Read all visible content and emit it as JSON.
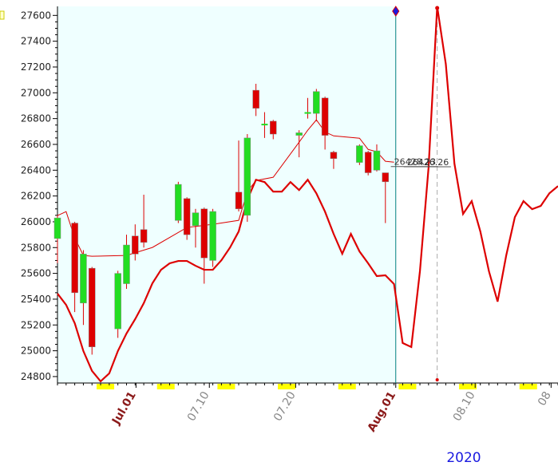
{
  "chart_data": {
    "type": "candlestick",
    "xlim": [
      0,
      58
    ],
    "ylim": [
      24750,
      27670
    ],
    "yticks": [
      24800,
      25000,
      25200,
      25400,
      25600,
      25800,
      26000,
      26200,
      26400,
      26600,
      26800,
      27000,
      27200,
      27400,
      27600
    ],
    "xticks": [
      {
        "value": 9.1,
        "label": "Jul.01",
        "color": "#8b1a1a"
      },
      {
        "value": 17.6,
        "label": "07.10",
        "color": "#888888"
      },
      {
        "value": 27.6,
        "label": "07.20",
        "color": "#888888"
      },
      {
        "value": 39.2,
        "label": "Aug.01",
        "color": "#8b1a1a"
      },
      {
        "value": 48.4,
        "label": "08.10",
        "color": "#888888"
      },
      {
        "value": 57.2,
        "label": "08",
        "color": "#888888"
      }
    ],
    "year_label": "2020",
    "up_color": "#22dd22",
    "down_color": "#dd0000",
    "candles": {
      "x": [
        0,
        2,
        3,
        4,
        7,
        8,
        9,
        10,
        14,
        15,
        16,
        17,
        18,
        21,
        22,
        23,
        24,
        25,
        28,
        29,
        30,
        31,
        32,
        35,
        36,
        37,
        38
      ],
      "open": [
        25870,
        25990,
        25370,
        25640,
        25170,
        25520,
        25890,
        25940,
        26010,
        26180,
        25970,
        26100,
        25700,
        26230,
        26050,
        27020,
        26750,
        26780,
        26670,
        26840,
        26840,
        26960,
        26540,
        26460,
        26540,
        26400,
        26380
      ],
      "high": [
        26050,
        26000,
        25780,
        25650,
        25620,
        25900,
        25980,
        26210,
        26310,
        26190,
        26100,
        26110,
        26100,
        26630,
        26680,
        27070,
        26850,
        26790,
        26710,
        26960,
        27030,
        26970,
        26550,
        26600,
        26550,
        26600,
        26380
      ],
      "low": [
        25680,
        25300,
        25200,
        24970,
        25100,
        25480,
        25700,
        25800,
        25990,
        25860,
        25800,
        25520,
        25650,
        26080,
        26000,
        26820,
        26650,
        26640,
        26500,
        26800,
        26780,
        26560,
        26410,
        26440,
        26360,
        26390,
        25990
      ],
      "close": [
        26030,
        25450,
        25750,
        25030,
        25600,
        25820,
        25750,
        25840,
        26290,
        25900,
        26070,
        25720,
        26080,
        26100,
        26650,
        26880,
        26760,
        26680,
        26690,
        26850,
        27010,
        26670,
        26490,
        26590,
        26380,
        26550,
        26310
      ]
    },
    "lines": [
      {
        "color": "#dd0000",
        "width": 1,
        "x": [
          0,
          1,
          2,
          3,
          4,
          8,
          11,
          15,
          18,
          21,
          22,
          23,
          25,
          28,
          29,
          30,
          31,
          32,
          35,
          36,
          37,
          38,
          39
        ],
        "values": [
          26048,
          26079,
          25875,
          25739,
          25733,
          25739,
          25801,
          25956,
          25980,
          26011,
          26234,
          26320,
          26345,
          26617,
          26710,
          26790,
          26697,
          26666,
          26648,
          26561,
          26543,
          26469,
          26462
        ]
      },
      {
        "color": "#dd0000",
        "width": 2.2,
        "x": [
          0,
          1,
          2,
          3,
          4,
          5,
          6,
          7,
          8,
          9,
          10,
          11,
          12,
          13,
          14,
          15,
          16,
          17,
          18,
          19,
          20,
          21,
          22,
          23,
          24,
          25,
          26,
          27,
          28,
          29,
          30,
          31,
          32,
          33,
          34,
          35,
          36,
          37,
          38,
          39,
          40,
          41,
          42,
          43,
          44,
          45,
          46,
          47,
          48,
          49,
          50,
          51,
          52,
          53,
          54,
          55,
          56,
          57,
          58
        ],
        "values": [
          25443,
          25356,
          25214,
          24998,
          24844,
          24763,
          24825,
          24998,
          25134,
          25245,
          25369,
          25523,
          25628,
          25678,
          25696,
          25696,
          25659,
          25628,
          25628,
          25702,
          25801,
          25925,
          26172,
          26326,
          26308,
          26234,
          26234,
          26308,
          26246,
          26326,
          26221,
          26079,
          25906,
          25752,
          25906,
          25770,
          25678,
          25579,
          25585,
          25517,
          25060,
          25029,
          25616,
          26419,
          27668,
          27223,
          26450,
          26061,
          26160,
          25925,
          25616,
          25381,
          25739,
          26036,
          26160,
          26098,
          26123,
          26221,
          26277
        ]
      }
    ],
    "annotations": [
      {
        "text": "26428.23",
        "x": 39,
        "value": 26428.23
      },
      {
        "text": "26426.26",
        "x": 40.5,
        "value": 26426.26
      }
    ],
    "current_x": 39.2,
    "future_x": 44
  }
}
